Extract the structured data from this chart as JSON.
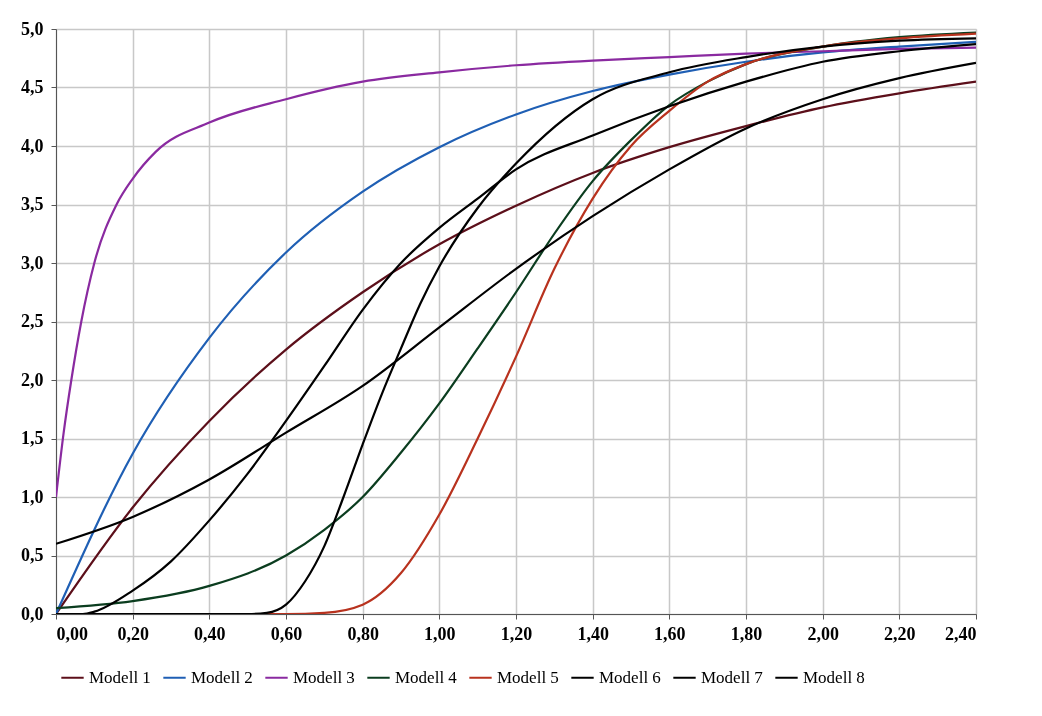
{
  "chart_data": {
    "type": "line",
    "xlim": [
      0,
      2.4
    ],
    "ylim": [
      0,
      5
    ],
    "xticks": [
      {
        "value": 0,
        "label": "0,00"
      },
      {
        "value": 0.2,
        "label": "0,20"
      },
      {
        "value": 0.4,
        "label": "0,40"
      },
      {
        "value": 0.6,
        "label": "0,60"
      },
      {
        "value": 0.8,
        "label": "0,80"
      },
      {
        "value": 1,
        "label": "1,00"
      },
      {
        "value": 1.2,
        "label": "1,20"
      },
      {
        "value": 1.4,
        "label": "1,40"
      },
      {
        "value": 1.6,
        "label": "1,60"
      },
      {
        "value": 1.8,
        "label": "1,80"
      },
      {
        "value": 2,
        "label": "2,00"
      },
      {
        "value": 2.2,
        "label": "2,20"
      },
      {
        "value": 2.4,
        "label": "2,40"
      }
    ],
    "yticks": [
      {
        "value": 0,
        "label": "0,0"
      },
      {
        "value": 0.5,
        "label": "0,5"
      },
      {
        "value": 1,
        "label": "1,0"
      },
      {
        "value": 1.5,
        "label": "1,5"
      },
      {
        "value": 2,
        "label": "2,0"
      },
      {
        "value": 2.5,
        "label": "2,5"
      },
      {
        "value": 3,
        "label": "3,0"
      },
      {
        "value": 3.5,
        "label": "3,5"
      },
      {
        "value": 4,
        "label": "4,0"
      },
      {
        "value": 4.5,
        "label": "4,5"
      },
      {
        "value": 5,
        "label": "5,0"
      }
    ],
    "grid": true,
    "legend": "bottom",
    "marker": "none",
    "line_style": "solid",
    "series": [
      {
        "name": "Modell 1",
        "color": "#5c0f1a",
        "x": [
          0,
          0.2,
          0.4,
          0.6,
          0.8,
          1,
          1.2,
          1.4,
          1.6,
          1.8,
          2,
          2.2,
          2.4
        ],
        "values": [
          0,
          0.91,
          1.65,
          2.26,
          2.75,
          3.16,
          3.49,
          3.77,
          3.99,
          4.17,
          4.33,
          4.45,
          4.55
        ]
      },
      {
        "name": "Modell 2",
        "color": "#1f5fb4",
        "x": [
          0,
          0.2,
          0.4,
          0.6,
          0.8,
          1,
          1.2,
          1.4,
          1.6,
          1.8,
          2,
          2.2,
          2.4
        ],
        "values": [
          0,
          1.37,
          2.36,
          3.09,
          3.61,
          3.99,
          4.27,
          4.47,
          4.61,
          4.72,
          4.8,
          4.85,
          4.89
        ]
      },
      {
        "name": "Modell 3",
        "color": "#8a2aa0",
        "x": [
          0,
          0.02,
          0.04,
          0.066,
          0.1,
          0.158,
          0.2,
          0.26,
          0.4,
          0.6,
          0.8,
          1,
          1.2,
          1.4,
          1.6,
          1.8,
          2,
          2.2,
          2.4
        ],
        "values": [
          1.0,
          1.55,
          2.0,
          2.5,
          3.0,
          3.5,
          3.72,
          3.95,
          4.2,
          4.4,
          4.55,
          4.63,
          4.69,
          4.73,
          4.76,
          4.79,
          4.81,
          4.83,
          4.84
        ]
      },
      {
        "name": "Modell 4",
        "color": "#0b3d1f",
        "x": [
          0,
          0.2,
          0.4,
          0.6,
          0.7,
          0.8,
          0.9,
          1,
          1.1,
          1.2,
          1.3,
          1.4,
          1.5,
          1.6,
          1.7,
          1.8,
          2,
          2.2,
          2.4
        ],
        "values": [
          0.05,
          0.11,
          0.24,
          0.5,
          0.72,
          1.0,
          1.38,
          1.8,
          2.27,
          2.75,
          3.25,
          3.7,
          4.05,
          4.35,
          4.55,
          4.7,
          4.85,
          4.93,
          4.97
        ]
      },
      {
        "name": "Modell 5",
        "color": "#b8321e",
        "x": [
          0,
          0.6,
          0.7,
          0.8,
          0.9,
          1,
          1.1,
          1.2,
          1.3,
          1.4,
          1.5,
          1.6,
          1.7,
          1.8,
          2,
          2.2,
          2.4
        ],
        "values": [
          0,
          0,
          0.01,
          0.08,
          0.35,
          0.85,
          1.5,
          2.2,
          2.95,
          3.55,
          4.0,
          4.3,
          4.55,
          4.7,
          4.85,
          4.92,
          4.96
        ]
      },
      {
        "name": "Modell 6",
        "color": "#000000",
        "x": [
          0,
          0.2,
          0.4,
          0.6,
          0.8,
          1,
          1.2,
          1.4,
          1.6,
          1.8,
          2,
          2.2,
          2.4
        ],
        "values": [
          0.6,
          0.83,
          1.15,
          1.55,
          1.95,
          2.45,
          2.95,
          3.4,
          3.8,
          4.15,
          4.4,
          4.58,
          4.71
        ]
      },
      {
        "name": "Modell 7",
        "color": "#000000",
        "x": [
          0,
          0.07,
          0.1,
          0.2,
          0.3,
          0.4,
          0.5,
          0.6,
          0.7,
          0.8,
          0.9,
          1,
          1.1,
          1.2,
          1.4,
          1.6,
          1.8,
          2,
          2.2,
          2.4
        ],
        "values": [
          0,
          0,
          0.02,
          0.2,
          0.45,
          0.8,
          1.2,
          1.65,
          2.12,
          2.6,
          3.0,
          3.3,
          3.55,
          3.8,
          4.09,
          4.34,
          4.55,
          4.72,
          4.81,
          4.87
        ]
      },
      {
        "name": "Modell 8",
        "color": "#000000",
        "x": [
          0,
          0.5,
          0.55,
          0.6,
          0.65,
          0.7,
          0.75,
          0.8,
          0.85,
          0.9,
          0.95,
          1,
          1.1,
          1.2,
          1.4,
          1.6,
          1.8,
          2,
          2.2,
          2.4
        ],
        "values": [
          0,
          0,
          0.01,
          0.08,
          0.28,
          0.58,
          1.0,
          1.45,
          1.88,
          2.27,
          2.65,
          2.97,
          3.47,
          3.85,
          4.4,
          4.63,
          4.76,
          4.85,
          4.9,
          4.92
        ]
      }
    ]
  }
}
